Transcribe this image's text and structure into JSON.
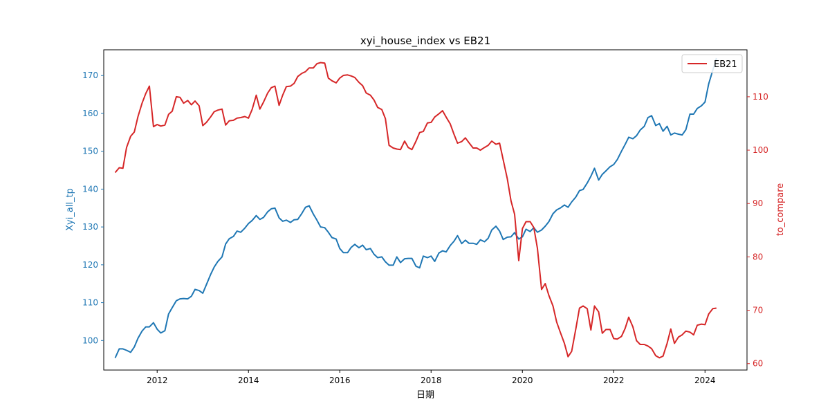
{
  "chart_data": {
    "type": "line",
    "title": "xyi_house_index vs EB21",
    "xlabel": "日期",
    "ylabel_left": "Xyi_all_tp",
    "ylabel_right": "to_compare",
    "x_ticks": [
      "2012",
      "2014",
      "2016",
      "2018",
      "2020",
      "2022",
      "2024"
    ],
    "y_left_ticks": [
      100,
      110,
      120,
      130,
      140,
      150,
      160,
      170
    ],
    "y_right_ticks": [
      60,
      70,
      80,
      90,
      100,
      110
    ],
    "xlim": [
      2010.83,
      2024.92
    ],
    "ylim_left": [
      92.2,
      176.8
    ],
    "ylim_right": [
      58.8,
      118.8
    ],
    "grid": false,
    "legend_position": "top-right",
    "colors": {
      "left": "#1f77b4",
      "right": "#d62728"
    },
    "series": [
      {
        "name": "",
        "axis": "left",
        "color": "#1f77b4",
        "x": [
          2011.08,
          2011.17,
          2011.25,
          2011.33,
          2011.42,
          2011.5,
          2011.58,
          2011.67,
          2011.75,
          2011.83,
          2011.92,
          2012.0,
          2012.08,
          2012.17,
          2012.25,
          2012.33,
          2012.42,
          2012.5,
          2012.58,
          2012.67,
          2012.75,
          2012.83,
          2012.92,
          2013.0,
          2013.08,
          2013.17,
          2013.25,
          2013.33,
          2013.42,
          2013.5,
          2013.58,
          2013.67,
          2013.75,
          2013.83,
          2013.92,
          2014.0,
          2014.08,
          2014.17,
          2014.25,
          2014.33,
          2014.42,
          2014.5,
          2014.58,
          2014.67,
          2014.75,
          2014.83,
          2014.92,
          2015.0,
          2015.08,
          2015.17,
          2015.25,
          2015.33,
          2015.42,
          2015.5,
          2015.58,
          2015.67,
          2015.75,
          2015.83,
          2015.92,
          2016.0,
          2016.08,
          2016.17,
          2016.25,
          2016.33,
          2016.42,
          2016.5,
          2016.58,
          2016.67,
          2016.75,
          2016.83,
          2016.92,
          2017.0,
          2017.08,
          2017.17,
          2017.25,
          2017.33,
          2017.42,
          2017.5,
          2017.58,
          2017.67,
          2017.75,
          2017.83,
          2017.92,
          2018.0,
          2018.08,
          2018.17,
          2018.25,
          2018.33,
          2018.42,
          2018.5,
          2018.58,
          2018.67,
          2018.75,
          2018.83,
          2018.92,
          2019.0,
          2019.08,
          2019.17,
          2019.25,
          2019.33,
          2019.42,
          2019.5,
          2019.58,
          2019.67,
          2019.75,
          2019.83,
          2019.92,
          2020.0,
          2020.08,
          2020.17,
          2020.25,
          2020.33,
          2020.42,
          2020.5,
          2020.58,
          2020.67,
          2020.75,
          2020.83,
          2020.92,
          2021.0,
          2021.08,
          2021.17,
          2021.25,
          2021.33,
          2021.42,
          2021.5,
          2021.58,
          2021.67,
          2021.75,
          2021.83,
          2021.92,
          2022.0,
          2022.08,
          2022.17,
          2022.25,
          2022.33,
          2022.42,
          2022.5,
          2022.58,
          2022.67,
          2022.75,
          2022.83,
          2022.92,
          2023.0,
          2023.08,
          2023.17,
          2023.25,
          2023.33,
          2023.42,
          2023.5,
          2023.58,
          2023.67,
          2023.75,
          2023.83,
          2023.92,
          2024.0,
          2024.08,
          2024.17,
          2024.25
        ],
        "values": [
          95.4,
          97.8,
          97.8,
          97.4,
          96.9,
          98.3,
          100.6,
          102.5,
          103.6,
          103.6,
          104.7,
          103.0,
          102.0,
          102.6,
          107.0,
          108.7,
          110.5,
          111.0,
          111.1,
          111.0,
          111.7,
          113.5,
          113.2,
          112.5,
          114.8,
          117.4,
          119.4,
          120.9,
          122.1,
          125.5,
          126.9,
          127.5,
          128.9,
          128.6,
          129.7,
          130.9,
          131.7,
          133.0,
          132.0,
          132.5,
          134.0,
          134.8,
          135.0,
          132.4,
          131.5,
          131.8,
          131.2,
          131.9,
          132.0,
          133.6,
          135.2,
          135.6,
          133.4,
          131.8,
          130.0,
          129.8,
          128.6,
          127.2,
          126.8,
          124.3,
          123.2,
          123.2,
          124.6,
          125.4,
          124.5,
          125.2,
          124.0,
          124.3,
          122.8,
          121.9,
          122.1,
          120.8,
          119.9,
          119.9,
          122.1,
          120.6,
          121.6,
          121.7,
          121.7,
          119.6,
          119.2,
          122.3,
          121.9,
          122.3,
          120.9,
          123.1,
          123.7,
          123.4,
          125.1,
          126.2,
          127.7,
          125.6,
          126.5,
          125.7,
          125.7,
          125.4,
          126.6,
          126.1,
          127.0,
          129.2,
          130.2,
          128.9,
          126.7,
          127.3,
          127.4,
          128.5,
          126.8,
          127.4,
          129.4,
          128.8,
          129.8,
          128.6,
          129.2,
          130.2,
          131.4,
          133.5,
          134.5,
          135.0,
          135.8,
          135.2,
          136.6,
          137.9,
          139.6,
          139.9,
          141.6,
          143.4,
          145.5,
          142.4,
          143.9,
          144.8,
          145.9,
          146.5,
          147.8,
          150.0,
          151.8,
          153.7,
          153.3,
          154.1,
          155.6,
          156.6,
          158.9,
          159.4,
          156.8,
          157.3,
          155.3,
          156.6,
          154.3,
          154.8,
          154.5,
          154.3,
          155.7,
          159.8,
          159.8,
          161.3,
          162.0,
          163.0,
          167.8,
          171.4,
          174.6
        ]
      },
      {
        "name": "EB21",
        "axis": "right",
        "color": "#d62728",
        "x": [
          2011.08,
          2011.17,
          2011.25,
          2011.33,
          2011.42,
          2011.5,
          2011.58,
          2011.67,
          2011.75,
          2011.83,
          2011.92,
          2012.0,
          2012.08,
          2012.17,
          2012.25,
          2012.33,
          2012.42,
          2012.5,
          2012.58,
          2012.67,
          2012.75,
          2012.83,
          2012.92,
          2013.0,
          2013.08,
          2013.17,
          2013.25,
          2013.33,
          2013.42,
          2013.5,
          2013.58,
          2013.67,
          2013.75,
          2013.83,
          2013.92,
          2014.0,
          2014.08,
          2014.17,
          2014.25,
          2014.33,
          2014.42,
          2014.5,
          2014.58,
          2014.67,
          2014.75,
          2014.83,
          2014.92,
          2015.0,
          2015.08,
          2015.17,
          2015.25,
          2015.33,
          2015.42,
          2015.5,
          2015.58,
          2015.67,
          2015.75,
          2015.83,
          2015.92,
          2016.0,
          2016.08,
          2016.17,
          2016.25,
          2016.33,
          2016.42,
          2016.5,
          2016.58,
          2016.67,
          2016.75,
          2016.83,
          2016.92,
          2017.0,
          2017.08,
          2017.17,
          2017.25,
          2017.33,
          2017.42,
          2017.5,
          2017.58,
          2017.67,
          2017.75,
          2017.83,
          2017.92,
          2018.0,
          2018.08,
          2018.17,
          2018.25,
          2018.33,
          2018.42,
          2018.5,
          2018.58,
          2018.67,
          2018.75,
          2018.83,
          2018.92,
          2019.0,
          2019.08,
          2019.17,
          2019.25,
          2019.33,
          2019.42,
          2019.5,
          2019.58,
          2019.67,
          2019.75,
          2019.83,
          2019.92,
          2020.0,
          2020.08,
          2020.17,
          2020.25,
          2020.33,
          2020.42,
          2020.5,
          2020.58,
          2020.67,
          2020.75,
          2020.83,
          2020.92,
          2021.0,
          2021.08,
          2021.17,
          2021.25,
          2021.33,
          2021.42,
          2021.5,
          2021.58,
          2021.67,
          2021.75,
          2021.83,
          2021.92,
          2022.0,
          2022.08,
          2022.17,
          2022.25,
          2022.33,
          2022.42,
          2022.5,
          2022.58,
          2022.67,
          2022.75,
          2022.83,
          2022.92,
          2023.0,
          2023.08,
          2023.17,
          2023.25,
          2023.33,
          2023.42,
          2023.5,
          2023.58,
          2023.67,
          2023.75,
          2023.83,
          2023.92,
          2024.0,
          2024.08,
          2024.17,
          2024.25
        ],
        "values": [
          95.8,
          96.7,
          96.6,
          100.5,
          102.6,
          103.4,
          106.3,
          108.8,
          110.6,
          112.0,
          104.4,
          104.8,
          104.5,
          104.7,
          106.7,
          107.3,
          110.0,
          109.9,
          108.8,
          109.3,
          108.5,
          109.2,
          108.3,
          104.6,
          105.2,
          106.2,
          107.2,
          107.5,
          107.7,
          104.7,
          105.5,
          105.6,
          106.0,
          106.1,
          106.3,
          106.0,
          107.6,
          110.3,
          107.7,
          109.0,
          110.7,
          111.7,
          112.0,
          108.4,
          110.3,
          111.9,
          112.0,
          112.5,
          113.8,
          114.4,
          114.7,
          115.4,
          115.4,
          116.2,
          116.4,
          116.3,
          113.5,
          113.0,
          112.6,
          113.5,
          114.0,
          114.1,
          113.9,
          113.6,
          112.7,
          112.1,
          110.7,
          110.3,
          109.4,
          108.0,
          107.6,
          105.9,
          100.9,
          100.4,
          100.2,
          100.1,
          101.7,
          100.5,
          100.1,
          101.7,
          103.3,
          103.5,
          105.1,
          105.2,
          106.2,
          106.8,
          107.4,
          106.2,
          104.9,
          103.0,
          101.3,
          101.6,
          102.3,
          101.4,
          100.4,
          100.4,
          100.0,
          100.5,
          100.9,
          101.7,
          101.1,
          101.3,
          98.2,
          94.6,
          90.5,
          88.0,
          79.3,
          85.3,
          86.6,
          86.6,
          85.5,
          81.6,
          73.9,
          75.0,
          72.8,
          70.8,
          67.8,
          65.9,
          63.8,
          61.3,
          62.3,
          66.5,
          70.4,
          70.8,
          70.3,
          66.3,
          70.8,
          69.7,
          65.7,
          66.4,
          66.4,
          64.7,
          64.6,
          65.1,
          66.6,
          68.7,
          66.9,
          64.3,
          63.6,
          63.6,
          63.3,
          62.8,
          61.5,
          61.1,
          61.4,
          63.8,
          66.5,
          63.8,
          65.0,
          65.4,
          66.1,
          65.9,
          65.4,
          67.2,
          67.4,
          67.3,
          69.3,
          70.3,
          70.4
        ]
      }
    ]
  }
}
